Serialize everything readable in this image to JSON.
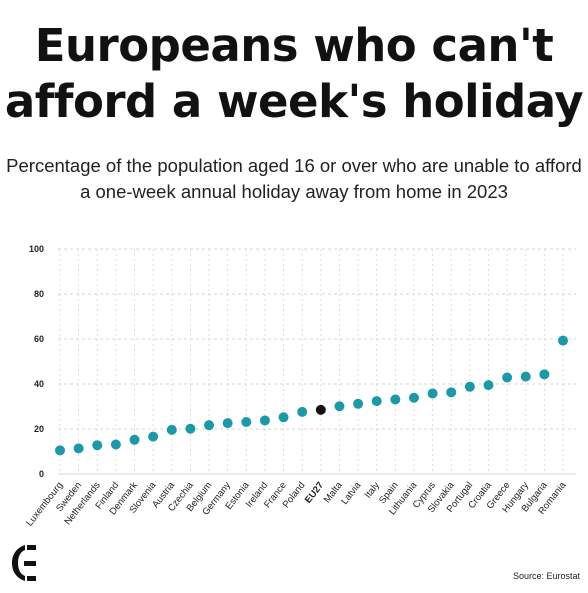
{
  "header": {
    "title": "Europeans who can't afford a week's holiday",
    "subtitle": "Percentage of the population aged 16 or over who are unable to afford a one-week annual holiday away from home in 2023"
  },
  "footer": {
    "source": "Source: Eurostat",
    "logo_icon": "euronews-logo-icon"
  },
  "colors": {
    "dot": "#1a9aa8",
    "highlight": "#111111",
    "grid": "#d6d6d6"
  },
  "chart_data": {
    "type": "scatter",
    "title": "Europeans who can't afford a week's holiday",
    "xlabel": "",
    "ylabel": "",
    "ylim": [
      0,
      100
    ],
    "yticks": [
      0,
      20,
      40,
      60,
      80,
      100
    ],
    "grid": true,
    "highlight": "EU27",
    "categories": [
      "Luxembourg",
      "Sweden",
      "Netherlands",
      "Finland",
      "Denmark",
      "Slovenia",
      "Austria",
      "Czechia",
      "Belgium",
      "Germany",
      "Estonia",
      "Ireland",
      "France",
      "Poland",
      "EU27",
      "Malta",
      "Latvia",
      "Italy",
      "Spain",
      "Lithuania",
      "Cyprus",
      "Slovakia",
      "Portugal",
      "Croatia",
      "Greece",
      "Hungary",
      "Bulgaria",
      "Romania"
    ],
    "values": [
      10.5,
      11.4,
      12.8,
      13.1,
      15.2,
      16.6,
      19.6,
      20.1,
      21.7,
      22.6,
      23.1,
      23.8,
      25.2,
      27.6,
      28.5,
      30.1,
      31.2,
      32.4,
      33.1,
      33.9,
      35.8,
      36.3,
      38.8,
      39.5,
      42.9,
      43.3,
      44.3,
      59.3
    ]
  }
}
